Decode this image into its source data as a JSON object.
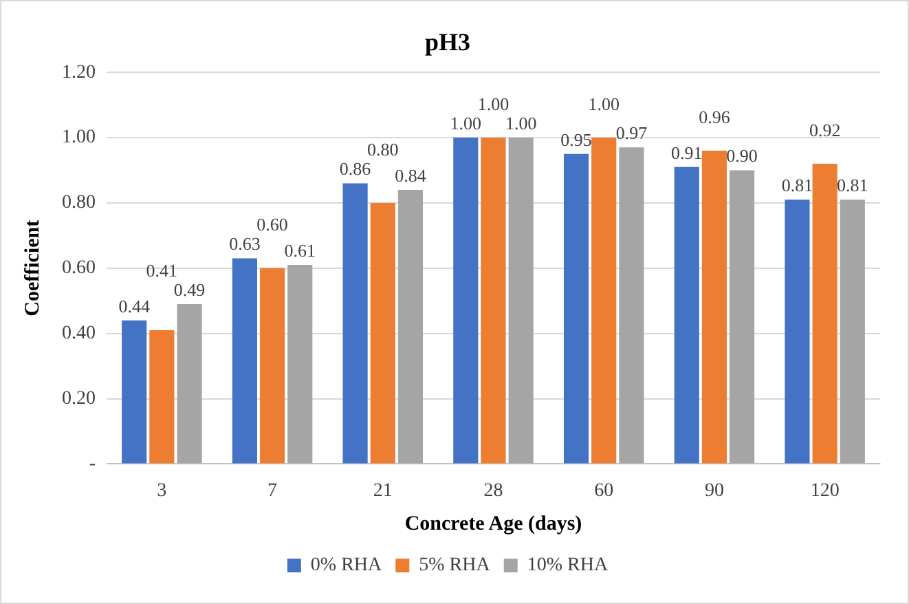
{
  "chart_data": {
    "type": "bar",
    "title": "pH3",
    "xlabel": "Concrete Age (days)",
    "ylabel": "Coefficient",
    "categories": [
      "3",
      "7",
      "21",
      "28",
      "60",
      "90",
      "120"
    ],
    "series": [
      {
        "name": "0% RHA",
        "color": "#4472c4",
        "values": [
          0.44,
          0.63,
          0.86,
          1.0,
          0.95,
          0.91,
          0.81
        ],
        "value_labels": [
          "0.44",
          "0.63",
          "0.86",
          "1.00",
          "0.95",
          "0.91",
          "0.81"
        ]
      },
      {
        "name": "5% RHA",
        "color": "#ed7d31",
        "values": [
          0.41,
          0.6,
          0.8,
          1.0,
          1.0,
          0.96,
          0.92
        ],
        "value_labels": [
          "0.41",
          "0.60",
          "0.80",
          "1.00",
          "1.00",
          "0.96",
          "0.92"
        ]
      },
      {
        "name": "10% RHA",
        "color": "#a5a5a5",
        "values": [
          0.49,
          0.61,
          0.84,
          1.0,
          0.97,
          0.9,
          0.81
        ],
        "value_labels": [
          "0.49",
          "0.61",
          "0.84",
          "1.00",
          "0.97",
          "0.90",
          "0.81"
        ]
      }
    ],
    "ylim": [
      0,
      1.2
    ],
    "yticks": [
      {
        "value": 0,
        "label": "-"
      },
      {
        "value": 0.2,
        "label": "0.20"
      },
      {
        "value": 0.4,
        "label": "0.40"
      },
      {
        "value": 0.6,
        "label": "0.60"
      },
      {
        "value": 0.8,
        "label": "0.80"
      },
      {
        "value": 1.0,
        "label": "1.00"
      },
      {
        "value": 1.2,
        "label": "1.20"
      }
    ],
    "grid": "y",
    "legend": "bottom"
  }
}
